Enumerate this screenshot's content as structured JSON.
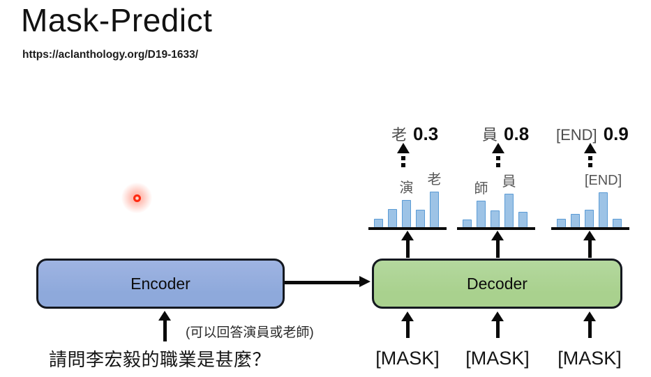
{
  "slide": {
    "title": "Mask-Predict",
    "url": "https://aclanthology.org/D19-1633/"
  },
  "diagram": {
    "encoder_label": "Encoder",
    "decoder_label": "Decoder",
    "encoder_input_text": "請問李宏毅的職業是甚麼？",
    "encoder_input_note": "(可以回答演員或老師)",
    "decoder_inputs": [
      "[MASK]",
      "[MASK]",
      "[MASK]"
    ]
  },
  "colors": {
    "encoder_fill": "#8EA9DB",
    "decoder_fill": "#A9D18E",
    "bar_fill": "#9DC3E6",
    "bar_border": "#5B9BD5",
    "arrow": "#0a0a0a",
    "laser": "#FF2A12"
  },
  "chart_data": [
    {
      "type": "bar",
      "bars": [
        {
          "rel_height": 0.24,
          "label": ""
        },
        {
          "rel_height": 0.51,
          "label": ""
        },
        {
          "rel_height": 0.76,
          "label": "演"
        },
        {
          "rel_height": 0.49,
          "label": ""
        },
        {
          "rel_height": 1.0,
          "label": "老"
        }
      ],
      "prediction": {
        "token": "老",
        "prob": "0.3"
      }
    },
    {
      "type": "bar",
      "bars": [
        {
          "rel_height": 0.22,
          "label": ""
        },
        {
          "rel_height": 0.75,
          "label": "師"
        },
        {
          "rel_height": 0.47,
          "label": ""
        },
        {
          "rel_height": 0.94,
          "label": "員"
        },
        {
          "rel_height": 0.43,
          "label": ""
        }
      ],
      "prediction": {
        "token": "員",
        "prob": "0.8"
      }
    },
    {
      "type": "bar",
      "bars": [
        {
          "rel_height": 0.24,
          "label": ""
        },
        {
          "rel_height": 0.37,
          "label": ""
        },
        {
          "rel_height": 0.49,
          "label": ""
        },
        {
          "rel_height": 0.98,
          "label": "[END]"
        },
        {
          "rel_height": 0.24,
          "label": ""
        }
      ],
      "prediction": {
        "token": "[END]",
        "prob": "0.9"
      }
    }
  ]
}
